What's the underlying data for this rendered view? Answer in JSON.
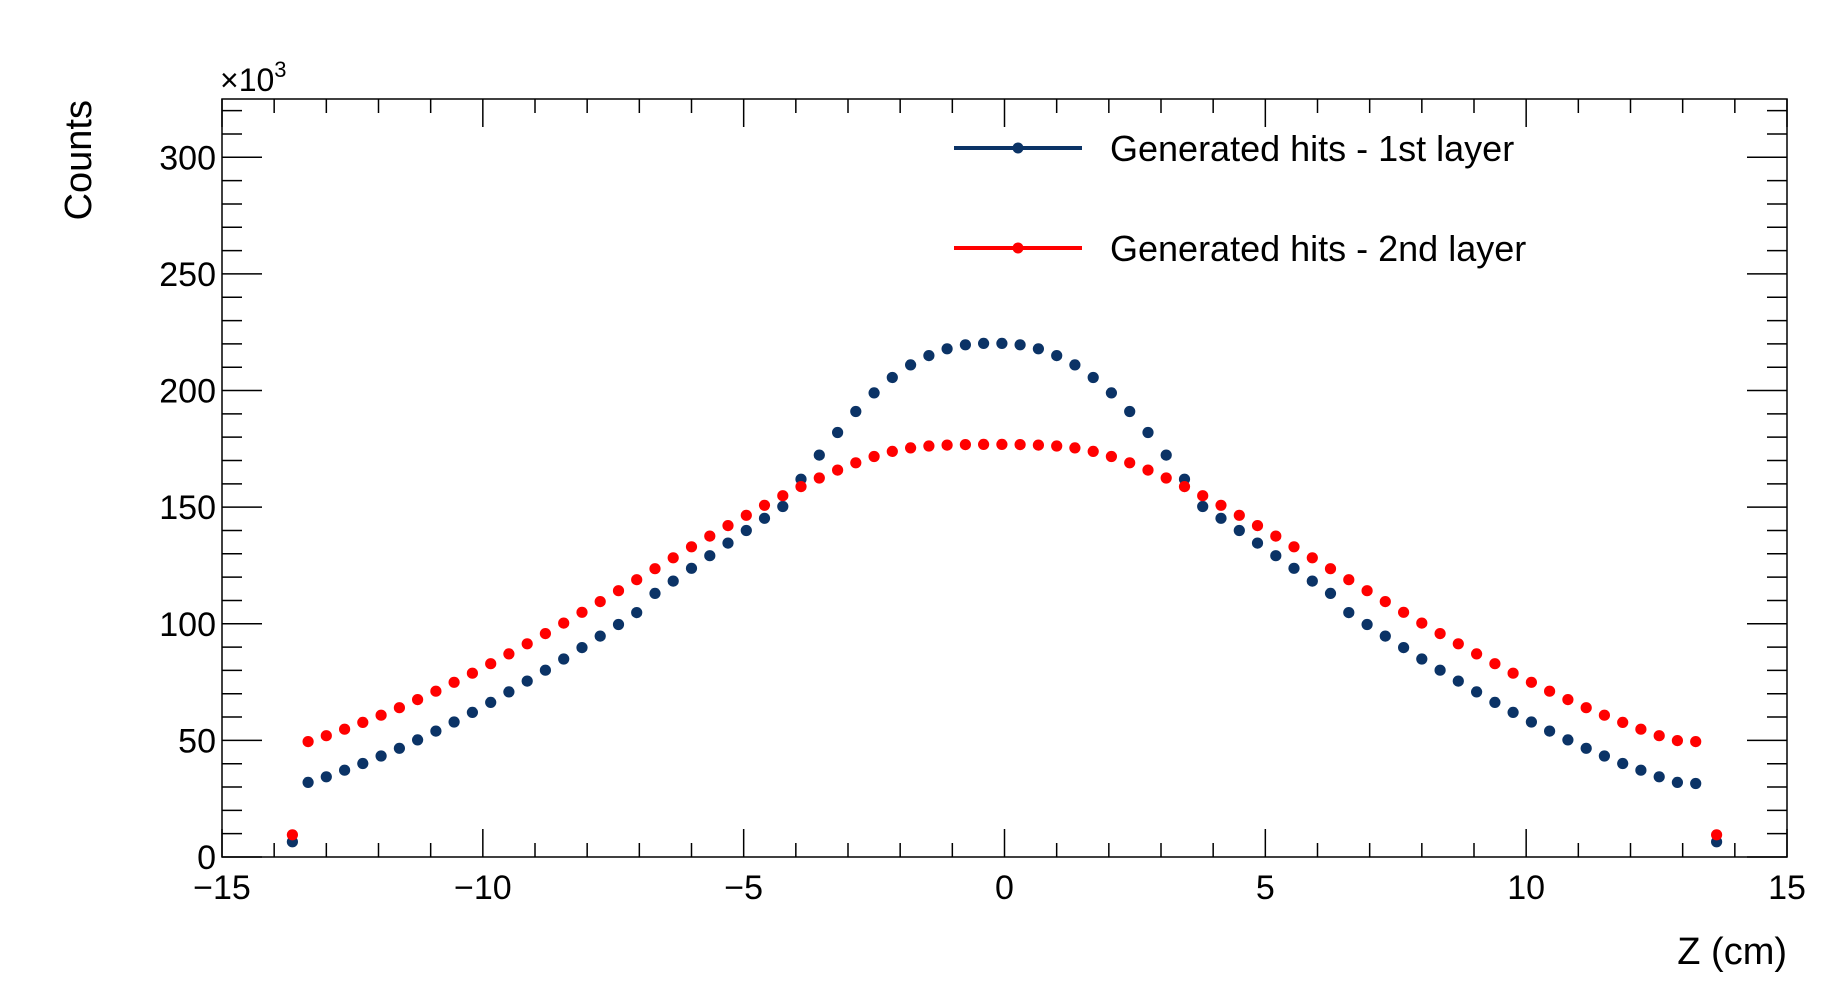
{
  "chart_data": {
    "type": "scatter",
    "title": "",
    "xlabel": "Z (cm)",
    "ylabel": "Counts",
    "y_multiplier_prefix": "×10",
    "y_multiplier_exponent": "3",
    "xlim": [
      -15,
      15
    ],
    "ylim": [
      0,
      325
    ],
    "x_ticks": [
      -15,
      -10,
      -5,
      0,
      5,
      10,
      15
    ],
    "x_tick_labels": [
      "−15",
      "−10",
      "−5",
      "0",
      "5",
      "10",
      "15"
    ],
    "y_ticks": [
      0,
      50,
      100,
      150,
      200,
      250,
      300
    ],
    "y_tick_labels": [
      "0",
      "50",
      "100",
      "150",
      "200",
      "250",
      "300"
    ],
    "grid": false,
    "legend_position": "top-right",
    "x": [
      -13.65,
      -13.35,
      -13.0,
      -12.65,
      -12.3,
      -11.95,
      -11.6,
      -11.25,
      -10.9,
      -10.55,
      -10.2,
      -9.85,
      -9.5,
      -9.15,
      -8.8,
      -8.45,
      -8.1,
      -7.75,
      -7.4,
      -7.05,
      -6.7,
      -6.35,
      -6.0,
      -5.65,
      -5.3,
      -4.95,
      -4.6,
      -4.25,
      -3.9,
      -3.55,
      -3.2,
      -2.85,
      -2.5,
      -2.15,
      -1.8,
      -1.45,
      -1.1,
      -0.75,
      -0.4,
      -0.05,
      0.3,
      0.65,
      1.0,
      1.35,
      1.7,
      2.05,
      2.4,
      2.75,
      3.1,
      3.45,
      3.8,
      4.15,
      4.5,
      4.85,
      5.2,
      5.55,
      5.9,
      6.25,
      6.6,
      6.95,
      7.3,
      7.65,
      8.0,
      8.35,
      8.7,
      9.05,
      9.4,
      9.75,
      10.1,
      10.45,
      10.8,
      11.15,
      11.5,
      11.85,
      12.2,
      12.55,
      12.9,
      13.25,
      13.65
    ],
    "series": [
      {
        "name": "Generated hits - 1st layer",
        "color": "#0b3366",
        "values": [
          6.5,
          32.0,
          34.4,
          37.2,
          40.1,
          43.3,
          46.6,
          50.2,
          54.0,
          57.9,
          62.0,
          66.3,
          70.8,
          75.4,
          80.1,
          84.9,
          89.8,
          94.7,
          99.7,
          104.8,
          113.0,
          118.3,
          123.8,
          129.2,
          134.6,
          140.0,
          145.2,
          150.3,
          162.0,
          172.3,
          182.0,
          191.0,
          199.0,
          205.6,
          211.0,
          215.0,
          217.9,
          219.6,
          220.2,
          220.2,
          219.6,
          217.9,
          215.0,
          211.0,
          205.6,
          199.0,
          191.0,
          182.0,
          172.3,
          162.0,
          150.3,
          145.2,
          140.0,
          134.6,
          129.2,
          123.8,
          118.3,
          113.0,
          104.8,
          99.7,
          94.7,
          89.8,
          84.9,
          80.1,
          75.4,
          70.8,
          66.3,
          62.0,
          57.9,
          54.0,
          50.2,
          46.6,
          43.3,
          40.1,
          37.2,
          34.4,
          32.0,
          31.5,
          6.5
        ]
      },
      {
        "name": "Generated hits - 2nd layer",
        "color": "#ff0000",
        "values": [
          9.5,
          49.5,
          52.0,
          54.8,
          57.7,
          60.8,
          64.0,
          67.5,
          71.1,
          74.9,
          78.8,
          82.9,
          87.1,
          91.4,
          95.8,
          100.3,
          104.9,
          109.5,
          114.2,
          118.9,
          123.6,
          128.3,
          133.0,
          137.6,
          142.1,
          146.5,
          150.8,
          154.9,
          158.8,
          162.5,
          165.9,
          169.0,
          171.7,
          173.9,
          175.4,
          176.2,
          176.6,
          176.8,
          176.9,
          176.9,
          176.8,
          176.6,
          176.2,
          175.4,
          173.9,
          171.7,
          169.0,
          165.9,
          162.5,
          158.8,
          154.9,
          150.8,
          146.5,
          142.1,
          137.6,
          133.0,
          128.3,
          123.6,
          118.9,
          114.2,
          109.5,
          104.9,
          100.3,
          95.8,
          91.4,
          87.1,
          82.9,
          78.8,
          74.9,
          71.1,
          67.5,
          64.0,
          60.8,
          57.7,
          54.8,
          52.0,
          49.9,
          49.5,
          9.5
        ]
      }
    ]
  }
}
